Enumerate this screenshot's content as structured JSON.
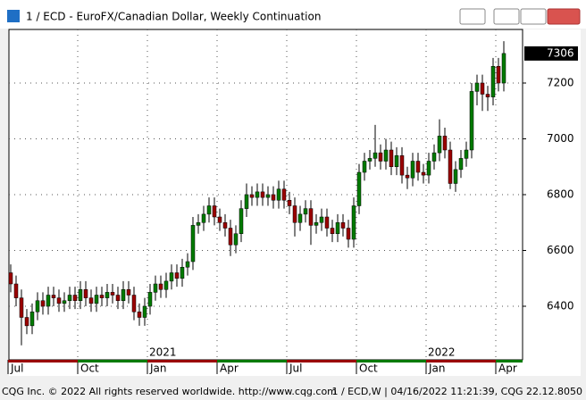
{
  "window": {
    "title": "1 / ECD - EuroFX/Canadian Dollar, Weekly Continuation"
  },
  "footer": {
    "left": "CQG Inc. © 2022 All rights reserved worldwide. http://www.cqg.com",
    "right": "1 / ECD,W | 04/16/2022 11:21:39, CQG 22.12.8050"
  },
  "chart_data": {
    "type": "candlestick",
    "categories": [
      "Jul",
      null,
      null,
      null,
      null,
      null,
      null,
      null,
      null,
      null,
      null,
      null,
      null,
      "Oct",
      null,
      null,
      null,
      null,
      null,
      null,
      null,
      null,
      null,
      null,
      null,
      null,
      "Jan",
      null,
      null,
      null,
      null,
      null,
      null,
      null,
      null,
      null,
      null,
      null,
      null,
      "Apr",
      null,
      null,
      null,
      null,
      null,
      null,
      null,
      null,
      null,
      null,
      null,
      null,
      "Jul",
      null,
      null,
      null,
      null,
      null,
      null,
      null,
      null,
      null,
      null,
      null,
      null,
      "Oct",
      null,
      null,
      null,
      null,
      null,
      null,
      null,
      null,
      null,
      null,
      null,
      null,
      "Jan",
      null,
      null,
      null,
      null,
      null,
      null,
      null,
      null,
      null,
      null,
      null,
      null,
      "Apr",
      null
    ],
    "year_labels": [
      "2021",
      "2022"
    ],
    "open": [
      6520,
      6480,
      6430,
      6360,
      6330,
      6380,
      6420,
      6400,
      6440,
      6430,
      6410,
      6420,
      6440,
      6420,
      6460,
      6430,
      6410,
      6440,
      6430,
      6450,
      6440,
      6420,
      6460,
      6440,
      6380,
      6360,
      6400,
      6450,
      6480,
      6460,
      6490,
      6520,
      6500,
      6540,
      6560,
      6690,
      6700,
      6730,
      6760,
      6720,
      6700,
      6680,
      6620,
      6660,
      6750,
      6800,
      6790,
      6810,
      6790,
      6800,
      6780,
      6820,
      6780,
      6760,
      6700,
      6730,
      6750,
      6690,
      6700,
      6720,
      6680,
      6660,
      6700,
      6680,
      6640,
      6760,
      6880,
      6920,
      6930,
      6950,
      6920,
      6960,
      6900,
      6940,
      6870,
      6860,
      6920,
      6880,
      6870,
      6920,
      6950,
      7010,
      6960,
      6840,
      6890,
      6930,
      6960,
      7170,
      7200,
      7160,
      7150,
      7260,
      7200
    ],
    "high": [
      6550,
      6510,
      6460,
      6390,
      6410,
      6450,
      6450,
      6470,
      6470,
      6460,
      6450,
      6470,
      6470,
      6490,
      6490,
      6460,
      6470,
      6470,
      6480,
      6480,
      6470,
      6490,
      6490,
      6470,
      6410,
      6430,
      6480,
      6510,
      6510,
      6520,
      6550,
      6550,
      6570,
      6590,
      6720,
      6730,
      6760,
      6790,
      6790,
      6750,
      6730,
      6710,
      6690,
      6780,
      6840,
      6830,
      6840,
      6840,
      6830,
      6830,
      6850,
      6850,
      6810,
      6790,
      6760,
      6780,
      6780,
      6730,
      6750,
      6750,
      6710,
      6730,
      6730,
      6710,
      6790,
      6910,
      6950,
      6960,
      7050,
      6980,
      7000,
      6990,
      6970,
      6970,
      6900,
      6950,
      6950,
      6910,
      6950,
      6980,
      7070,
      7040,
      6990,
      6920,
      6960,
      6990,
      7200,
      7230,
      7230,
      7190,
      7290,
      7290,
      7350
    ],
    "low": [
      6450,
      6400,
      6260,
      6300,
      6300,
      6350,
      6370,
      6370,
      6400,
      6380,
      6380,
      6390,
      6390,
      6390,
      6400,
      6380,
      6380,
      6400,
      6400,
      6410,
      6390,
      6390,
      6410,
      6350,
      6330,
      6330,
      6370,
      6420,
      6430,
      6430,
      6460,
      6470,
      6470,
      6510,
      6530,
      6660,
      6670,
      6700,
      6690,
      6670,
      6650,
      6580,
      6590,
      6630,
      6720,
      6760,
      6760,
      6760,
      6760,
      6750,
      6750,
      6750,
      6730,
      6650,
      6670,
      6700,
      6620,
      6660,
      6670,
      6650,
      6630,
      6630,
      6650,
      6610,
      6610,
      6730,
      6850,
      6890,
      6900,
      6890,
      6890,
      6870,
      6870,
      6840,
      6820,
      6830,
      6850,
      6840,
      6840,
      6890,
      6920,
      6930,
      6820,
      6810,
      6860,
      6900,
      6930,
      7120,
      7100,
      7100,
      7120,
      7170,
      7170
    ],
    "close": [
      6480,
      6430,
      6360,
      6330,
      6380,
      6420,
      6400,
      6440,
      6430,
      6410,
      6420,
      6440,
      6420,
      6460,
      6430,
      6410,
      6440,
      6430,
      6450,
      6440,
      6420,
      6460,
      6440,
      6380,
      6360,
      6400,
      6450,
      6480,
      6460,
      6490,
      6520,
      6500,
      6540,
      6560,
      6690,
      6700,
      6730,
      6760,
      6720,
      6700,
      6680,
      6620,
      6660,
      6750,
      6800,
      6790,
      6810,
      6790,
      6800,
      6780,
      6820,
      6780,
      6760,
      6700,
      6730,
      6750,
      6690,
      6700,
      6720,
      6680,
      6660,
      6700,
      6680,
      6640,
      6760,
      6880,
      6920,
      6930,
      6950,
      6920,
      6960,
      6900,
      6940,
      6870,
      6860,
      6920,
      6880,
      6870,
      6920,
      6950,
      7010,
      6960,
      6840,
      6890,
      6930,
      6960,
      7170,
      7200,
      7160,
      7150,
      7260,
      7200,
      7306
    ],
    "up_color": "#007a00",
    "down_color": "#9a0000",
    "ylim": [
      6208,
      7392
    ],
    "yticks": [
      6400,
      6600,
      6800,
      7000,
      7200
    ],
    "y_axis_side": "right",
    "grid": true
  }
}
